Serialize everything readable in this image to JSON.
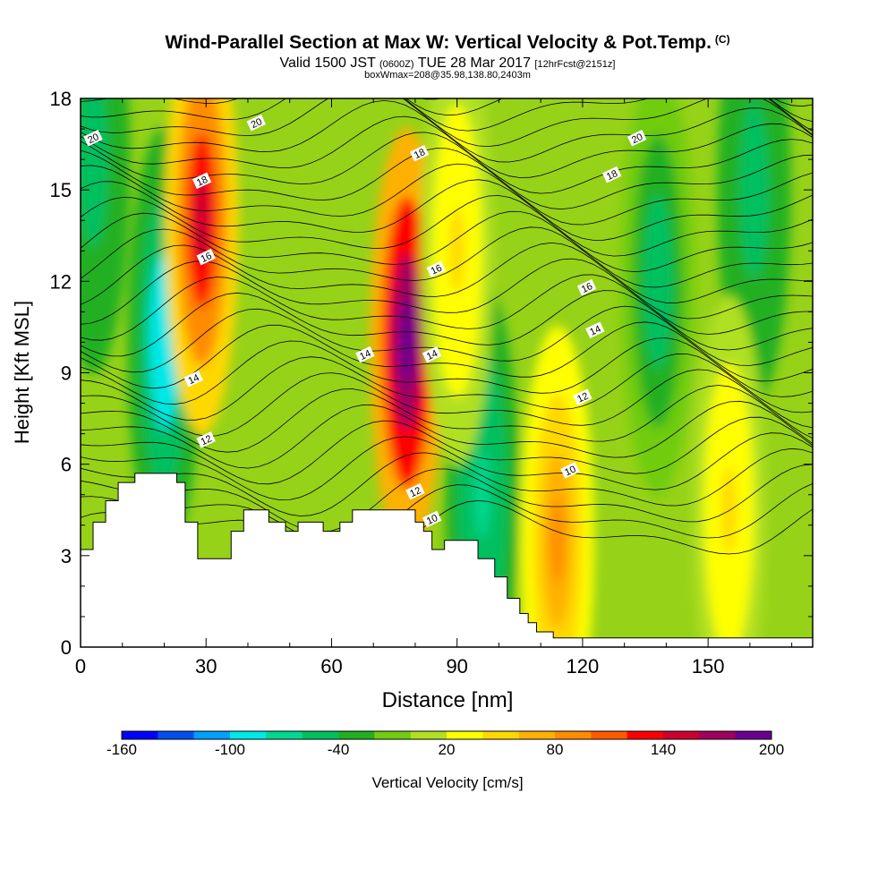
{
  "header": {
    "title": "Wind-Parallel Section at Max W: Vertical Velocity & Pot.Temp.",
    "copyright": "(C)",
    "valid_main": "Valid 1500 JST",
    "valid_z": "(0600Z)",
    "valid_date": "TUE 28 Mar 2017",
    "valid_fcst": "[12hrFcst@2151z]",
    "box_info": "boxWmax=208@35.98,138.80,2403m"
  },
  "chart_data": {
    "type": "heatmap",
    "xlabel": "Distance [nm]",
    "ylabel": "Height [Kft MSL]",
    "xlim": [
      0,
      175
    ],
    "ylim": [
      0,
      18
    ],
    "x_ticks": [
      "0",
      "30",
      "60",
      "90",
      "120",
      "150"
    ],
    "x_tick_values": [
      0,
      30,
      60,
      90,
      120,
      150
    ],
    "y_ticks": [
      "0",
      "3",
      "6",
      "9",
      "12",
      "15",
      "18"
    ],
    "y_tick_values": [
      0,
      3,
      6,
      9,
      12,
      15,
      18
    ],
    "colorbar": {
      "label": "Vertical Velocity [cm/s]",
      "tick_labels": [
        "-160",
        "-100",
        "-40",
        "20",
        "80",
        "140",
        "200"
      ],
      "tick_values": [
        -160,
        -100,
        -40,
        20,
        80,
        140,
        200
      ],
      "colors": [
        "#0000ff",
        "#0050f0",
        "#00a0ff",
        "#00e8e8",
        "#00d890",
        "#00c060",
        "#20b020",
        "#70cc10",
        "#b0e020",
        "#ffff00",
        "#ffd800",
        "#ffb000",
        "#ff8c00",
        "#ff5a00",
        "#ff0000",
        "#cc0030",
        "#a00060",
        "#6a0090"
      ]
    },
    "terrain_kft": [
      [
        0,
        3.2
      ],
      [
        3,
        4.1
      ],
      [
        6,
        4.8
      ],
      [
        9,
        5.4
      ],
      [
        13,
        5.7
      ],
      [
        17,
        5.7
      ],
      [
        23,
        5.4
      ],
      [
        25,
        4.1
      ],
      [
        28,
        2.9
      ],
      [
        32,
        2.9
      ],
      [
        36,
        3.8
      ],
      [
        39,
        4.5
      ],
      [
        45,
        4.1
      ],
      [
        49,
        3.8
      ],
      [
        52,
        4.1
      ],
      [
        58,
        3.8
      ],
      [
        62,
        4.1
      ],
      [
        65,
        4.5
      ],
      [
        70,
        4.5
      ],
      [
        75,
        4.5
      ],
      [
        78,
        4.5
      ],
      [
        80,
        4.1
      ],
      [
        82,
        3.8
      ],
      [
        84,
        3.2
      ],
      [
        87,
        3.5
      ],
      [
        93,
        3.5
      ],
      [
        95,
        2.9
      ],
      [
        99,
        2.3
      ],
      [
        102,
        1.6
      ],
      [
        105,
        1.1
      ],
      [
        107,
        0.8
      ],
      [
        109,
        0.5
      ],
      [
        113,
        0.3
      ],
      [
        120,
        0.3
      ],
      [
        175,
        0.3
      ]
    ],
    "updrafts": [
      {
        "x": 29,
        "y": 14,
        "value": 150
      },
      {
        "x": 78,
        "y": 10,
        "value": 208
      },
      {
        "x": 114,
        "y": 3.5,
        "value": 90
      },
      {
        "x": 90,
        "y": 13,
        "value": 40
      },
      {
        "x": 155,
        "y": 4.5,
        "value": 40
      }
    ],
    "downdrafts": [
      {
        "x": 20,
        "y": 10,
        "value": -100
      },
      {
        "x": 3,
        "y": 16,
        "value": -60
      },
      {
        "x": 96,
        "y": 5,
        "value": -70
      },
      {
        "x": 138,
        "y": 12,
        "value": -50
      },
      {
        "x": 161,
        "y": 15,
        "value": -60
      }
    ],
    "contour_labels": [
      {
        "text": "20",
        "x": 3,
        "y": 16.7
      },
      {
        "text": "20",
        "x": 42,
        "y": 17.2
      },
      {
        "text": "20",
        "x": 133,
        "y": 16.7
      },
      {
        "text": "18",
        "x": 29,
        "y": 15.3
      },
      {
        "text": "18",
        "x": 81,
        "y": 16.2
      },
      {
        "text": "18",
        "x": 127,
        "y": 15.5
      },
      {
        "text": "16",
        "x": 30,
        "y": 12.8
      },
      {
        "text": "16",
        "x": 85,
        "y": 12.4
      },
      {
        "text": "16",
        "x": 121,
        "y": 11.8
      },
      {
        "text": "14",
        "x": 27,
        "y": 8.8
      },
      {
        "text": "14",
        "x": 68,
        "y": 9.6
      },
      {
        "text": "14",
        "x": 84,
        "y": 9.6
      },
      {
        "text": "14",
        "x": 123,
        "y": 10.4
      },
      {
        "text": "12",
        "x": 30,
        "y": 6.8
      },
      {
        "text": "12",
        "x": 80,
        "y": 5.1
      },
      {
        "text": "12",
        "x": 120,
        "y": 8.2
      },
      {
        "text": "10",
        "x": 84,
        "y": 4.2
      },
      {
        "text": "10",
        "x": 117,
        "y": 5.8
      }
    ]
  }
}
